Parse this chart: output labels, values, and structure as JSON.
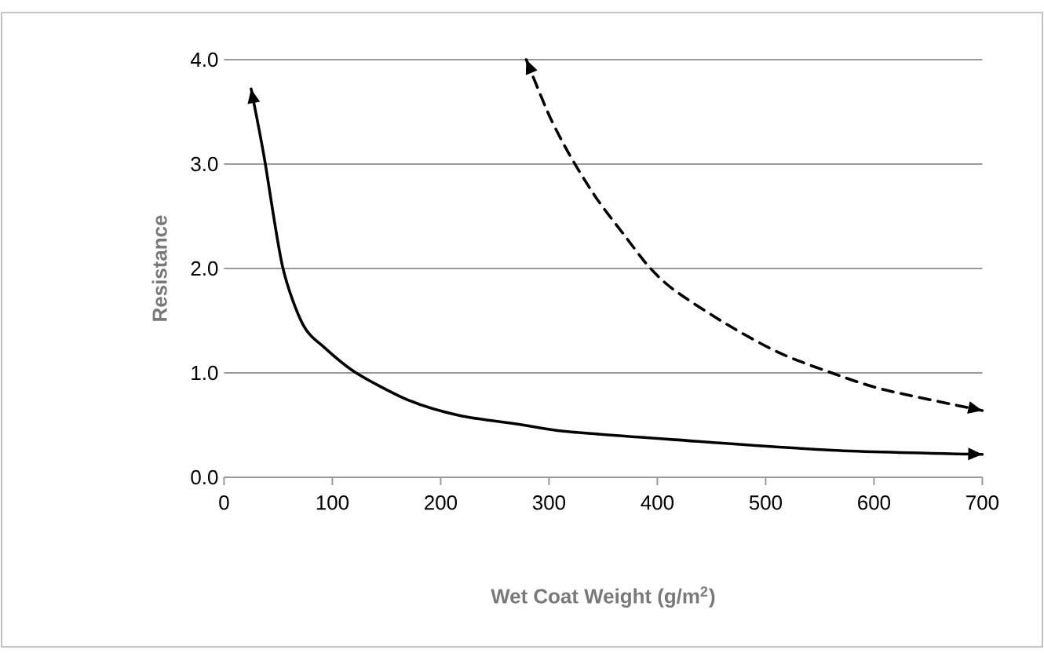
{
  "chart_data": {
    "type": "line",
    "xlabel": "Wet Coat Weight (g/m$^{2}$)",
    "ylabel": "Resistance",
    "xlim": [
      0,
      700
    ],
    "ylim": [
      0,
      4
    ],
    "xticks": [
      0,
      100,
      200,
      300,
      400,
      500,
      600,
      700
    ],
    "yticks": [
      {
        "value": 0,
        "label": "0.0"
      },
      {
        "value": 1,
        "label": "1.0"
      },
      {
        "value": 2,
        "label": "2.0"
      },
      {
        "value": 3,
        "label": "3.0"
      },
      {
        "value": 4,
        "label": "4.0"
      }
    ],
    "grid": "y",
    "series": [
      {
        "color": "#000000",
        "line_style": "solid",
        "x": [
          25,
          37,
          54,
          73,
          93,
          122,
          170,
          218,
          271,
          315,
          416,
          561,
          700
        ],
        "values": [
          3.72,
          3.07,
          2.02,
          1.46,
          1.24,
          1.0,
          0.74,
          0.59,
          0.51,
          0.44,
          0.36,
          0.26,
          0.22
        ]
      },
      {
        "color": "#000000",
        "line_style": "dashed",
        "x": [
          279,
          300,
          320,
          344,
          368,
          392,
          416,
          465,
          513,
          561,
          609,
          700
        ],
        "values": [
          4.0,
          3.47,
          3.07,
          2.67,
          2.34,
          2.02,
          1.79,
          1.46,
          1.19,
          1.0,
          0.84,
          0.64
        ]
      }
    ]
  }
}
